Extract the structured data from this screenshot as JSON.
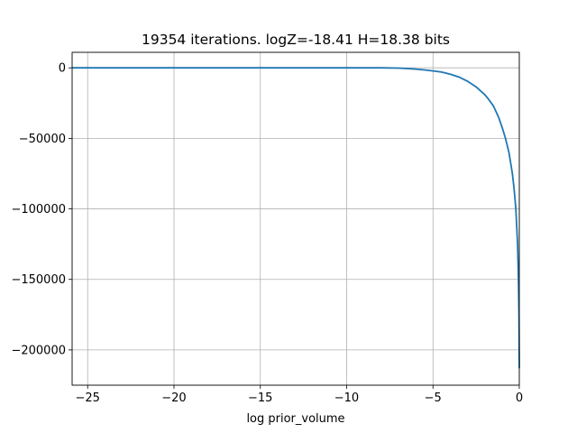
{
  "chart_data": {
    "type": "line",
    "title": "19354 iterations. logZ=-18.41 H=18.38 bits",
    "xlabel": "log prior_volume",
    "ylabel": "",
    "xlim": [
      -25.9,
      0
    ],
    "ylim": [
      -225000,
      11000
    ],
    "grid": true,
    "x_ticks": [
      -25,
      -20,
      -15,
      -10,
      -5,
      0
    ],
    "x_tick_labels": [
      "−25",
      "−20",
      "−15",
      "−10",
      "−5",
      "0"
    ],
    "y_ticks": [
      0,
      -50000,
      -100000,
      -150000,
      -200000
    ],
    "y_tick_labels": [
      "0",
      "−50000",
      "−100000",
      "−150000",
      "−200000"
    ],
    "series": [
      {
        "color": "#1f77b4",
        "x": [
          -25.9,
          -20,
          -15,
          -10,
          -8,
          -7,
          -6.5,
          -6,
          -5.5,
          -5,
          -4.5,
          -4,
          -3.5,
          -3,
          -2.5,
          -2,
          -1.8,
          -1.5,
          -1.2,
          -1,
          -0.8,
          -0.6,
          -0.4,
          -0.3,
          -0.2,
          -0.1,
          -0.05,
          -0.02,
          0
        ],
        "y": [
          0,
          0,
          0,
          0,
          0,
          -200,
          -500,
          -900,
          -1500,
          -2200,
          -3000,
          -4500,
          -6500,
          -9500,
          -13500,
          -19000,
          -22000,
          -27000,
          -35000,
          -42000,
          -50000,
          -60000,
          -75000,
          -86000,
          -100000,
          -125000,
          -150000,
          -175000,
          -213000
        ]
      }
    ]
  }
}
